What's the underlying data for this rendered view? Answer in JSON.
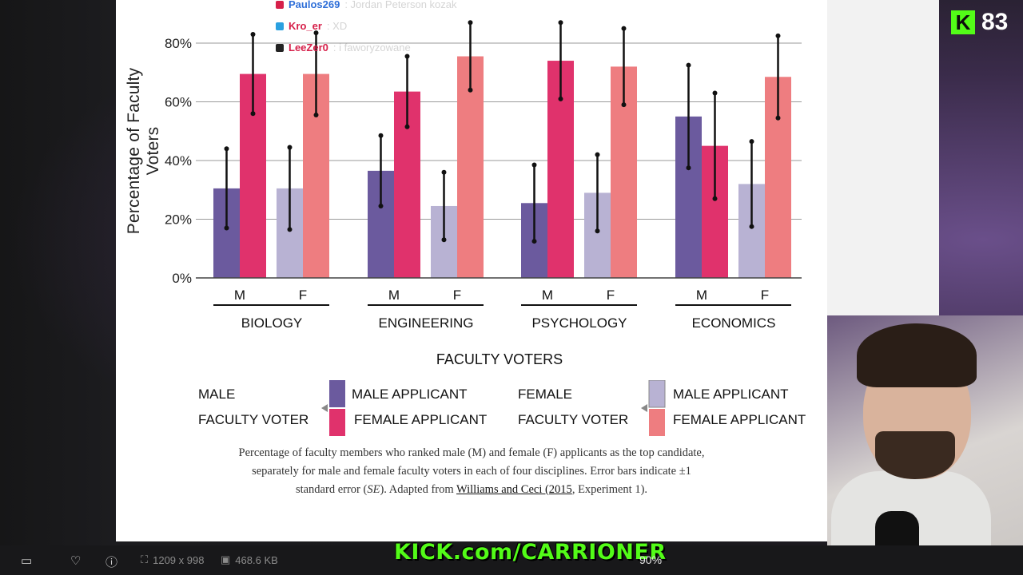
{
  "chart_data": {
    "type": "bar",
    "ylabel": "Percentage of Faculty Voters",
    "xlabel": "FACULTY VOTERS",
    "ylim": [
      0,
      85
    ],
    "yticks": [
      "0%",
      "20%",
      "40%",
      "60%",
      "80%"
    ],
    "grid": true,
    "groups": [
      {
        "discipline": "BIOLOGY",
        "voters": [
          {
            "voter": "M",
            "male_applicant": 30.5,
            "female_applicant": 69.5,
            "male_err": 13.5,
            "female_err": 13.5
          },
          {
            "voter": "F",
            "male_applicant": 30.5,
            "female_applicant": 69.5,
            "male_err": 14,
            "female_err": 14
          }
        ]
      },
      {
        "discipline": "ENGINEERING",
        "voters": [
          {
            "voter": "M",
            "male_applicant": 36.5,
            "female_applicant": 63.5,
            "male_err": 12,
            "female_err": 12
          },
          {
            "voter": "F",
            "male_applicant": 24.5,
            "female_applicant": 75.5,
            "male_err": 11.5,
            "female_err": 11.5
          }
        ]
      },
      {
        "discipline": "PSYCHOLOGY",
        "voters": [
          {
            "voter": "M",
            "male_applicant": 25.5,
            "female_applicant": 74,
            "male_err": 13,
            "female_err": 13
          },
          {
            "voter": "F",
            "male_applicant": 29,
            "female_applicant": 72,
            "male_err": 13,
            "female_err": 13
          }
        ]
      },
      {
        "discipline": "ECONOMICS",
        "voters": [
          {
            "voter": "M",
            "male_applicant": 55,
            "female_applicant": 45,
            "male_err": 17.5,
            "female_err": 18
          },
          {
            "voter": "F",
            "male_applicant": 32,
            "female_applicant": 68.5,
            "male_err": 14.5,
            "female_err": 14
          }
        ]
      }
    ],
    "colors": {
      "male_voter_male_applicant": "#6b5a9e",
      "male_voter_female_applicant": "#e0326c",
      "female_voter_male_applicant": "#b8b2d3",
      "female_voter_female_applicant": "#ee7d80"
    }
  },
  "legend": {
    "male_voter_line1": "MALE",
    "male_voter_line2": "FACULTY VOTER",
    "female_voter_line1": "FEMALE",
    "female_voter_line2": "FACULTY VOTER",
    "male_applicant": "MALE APPLICANT",
    "female_applicant": "FEMALE APPLICANT"
  },
  "caption": {
    "part1": "Percentage of faculty members who ranked male (M) and female (F) applicants as the top candidate, separately for male and female faculty voters in each of four disciplines. Error bars indicate ±1 standard error (",
    "se": "SE",
    "part2": "). Adapted from ",
    "link": "Williams and Ceci (2015",
    "part3": ", Experiment 1)."
  },
  "chat": [
    {
      "user": "Paulos269",
      "user_color": "#2f6fd8",
      "message": ": Jordan Peterson kozak"
    },
    {
      "user": "Kro_er",
      "user_color": "#d6204a",
      "message": ": XD"
    },
    {
      "user": "LeeZer0",
      "user_color": "#d6204a",
      "message": ": i faworyzowane"
    }
  ],
  "stream": {
    "viewer_count": "83",
    "kick_url": "KICK.com/CARRIONER"
  },
  "viewer_bar": {
    "dimensions": "1209 x 998",
    "file_size": "468.6 KB",
    "zoom": "90%"
  }
}
